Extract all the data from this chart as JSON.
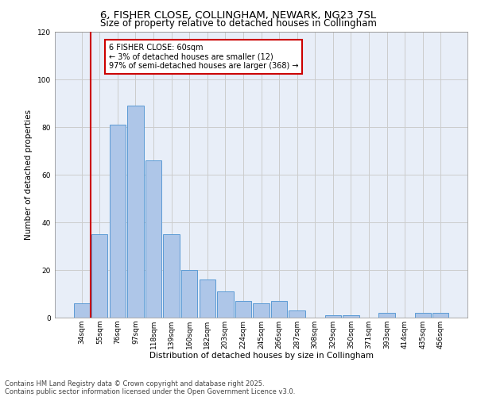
{
  "title_line1": "6, FISHER CLOSE, COLLINGHAM, NEWARK, NG23 7SL",
  "title_line2": "Size of property relative to detached houses in Collingham",
  "xlabel": "Distribution of detached houses by size in Collingham",
  "ylabel": "Number of detached properties",
  "categories": [
    "34sqm",
    "55sqm",
    "76sqm",
    "97sqm",
    "118sqm",
    "139sqm",
    "160sqm",
    "182sqm",
    "203sqm",
    "224sqm",
    "245sqm",
    "266sqm",
    "287sqm",
    "308sqm",
    "329sqm",
    "350sqm",
    "371sqm",
    "393sqm",
    "414sqm",
    "435sqm",
    "456sqm"
  ],
  "values": [
    6,
    35,
    81,
    89,
    66,
    35,
    20,
    16,
    11,
    7,
    6,
    7,
    3,
    0,
    1,
    1,
    0,
    2,
    0,
    2,
    2
  ],
  "bar_color": "#aec6e8",
  "bar_edge_color": "#5b9bd5",
  "vline_x_index": 1,
  "vline_color": "#cc0000",
  "ylim": [
    0,
    120
  ],
  "yticks": [
    0,
    20,
    40,
    60,
    80,
    100,
    120
  ],
  "annotation_text": "6 FISHER CLOSE: 60sqm\n← 3% of detached houses are smaller (12)\n97% of semi-detached houses are larger (368) →",
  "annotation_box_color": "#cc0000",
  "grid_color": "#cccccc",
  "background_color": "#e8eef8",
  "footer_line1": "Contains HM Land Registry data © Crown copyright and database right 2025.",
  "footer_line2": "Contains public sector information licensed under the Open Government Licence v3.0.",
  "title_fontsize": 9.5,
  "subtitle_fontsize": 8.5,
  "label_fontsize": 7.5,
  "tick_fontsize": 6.5,
  "footer_fontsize": 6.0,
  "annotation_fontsize": 7.0
}
